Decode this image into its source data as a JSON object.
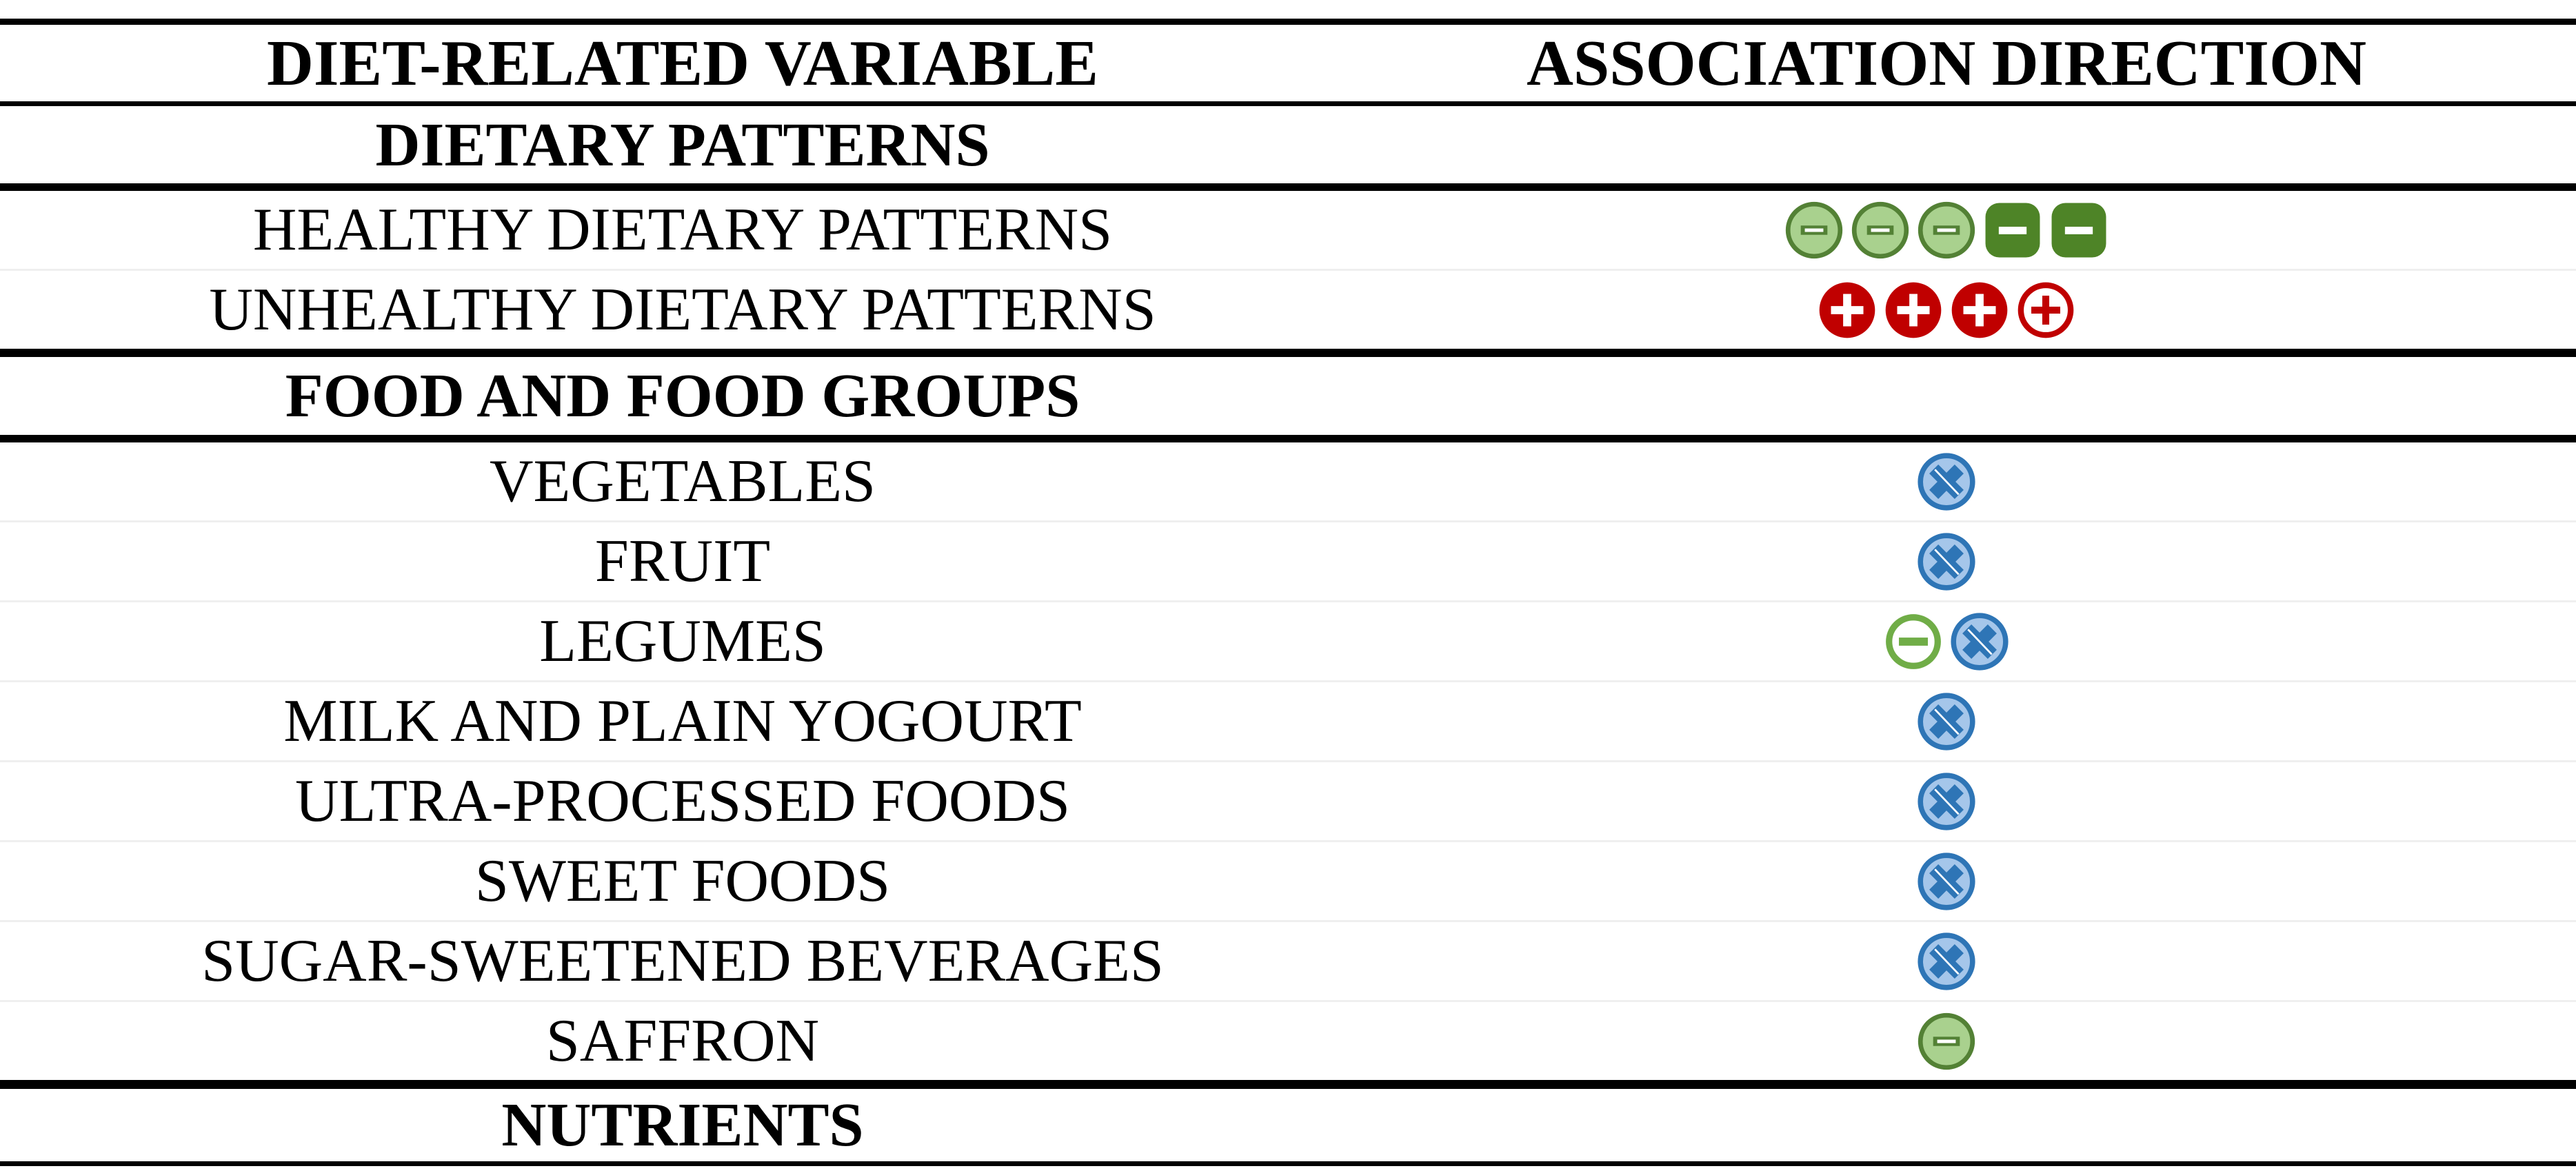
{
  "table": {
    "columns": [
      {
        "label": "DIET-RELATED VARIABLE"
      },
      {
        "label": "ASSOCIATION DIRECTION"
      }
    ],
    "sections": [
      {
        "label": "DIETARY PATTERNS",
        "rows": [
          {
            "label": "HEALTHY DIETARY PATTERNS",
            "icons": [
              "minus-light-green-circle",
              "minus-light-green-circle",
              "minus-light-green-circle",
              "minus-dark-green-square",
              "minus-dark-green-square"
            ]
          },
          {
            "label": "UNHEALTHY DIETARY PATTERNS",
            "icons": [
              "plus-red-circle",
              "plus-red-circle",
              "plus-red-circle",
              "plus-red-circle-outline"
            ]
          }
        ]
      },
      {
        "label": "FOOD AND FOOD GROUPS",
        "rows": [
          {
            "label": "VEGETABLES",
            "icons": [
              "cross-blue-circle"
            ]
          },
          {
            "label": "FRUIT",
            "icons": [
              "cross-blue-circle"
            ]
          },
          {
            "label": "LEGUMES",
            "icons": [
              "minus-green-circle-outline",
              "cross-blue-circle"
            ]
          },
          {
            "label": "MILK AND PLAIN YOGOURT",
            "icons": [
              "cross-blue-circle"
            ]
          },
          {
            "label": "ULTRA-PROCESSED FOODS",
            "icons": [
              "cross-blue-circle"
            ]
          },
          {
            "label": "SWEET FOODS",
            "icons": [
              "cross-blue-circle"
            ]
          },
          {
            "label": "SUGAR-SWEETENED BEVERAGES",
            "icons": [
              "cross-blue-circle"
            ]
          },
          {
            "label": "SAFFRON",
            "icons": [
              "minus-light-green-circle"
            ]
          }
        ]
      },
      {
        "label": "NUTRIENTS",
        "rows": []
      }
    ],
    "colors": {
      "green_light": "#a9d18e",
      "green_dark": "#538135",
      "green_square": "#4e8427",
      "green_bright": "#70ad47",
      "red": "#c00000",
      "blue": "#2e75b6",
      "blue_light": "#a5c6ea",
      "separator_gray": "#efefef",
      "line_black": "#000000"
    }
  }
}
